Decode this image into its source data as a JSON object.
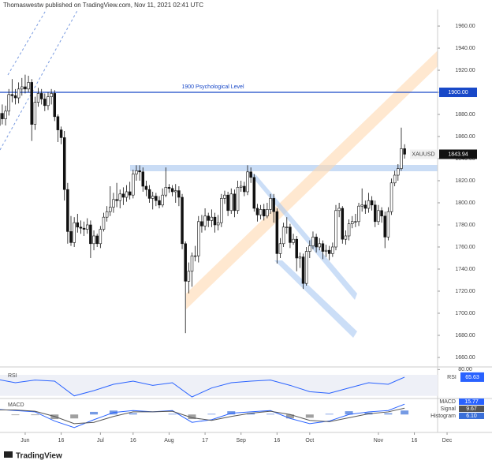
{
  "chart_data": {
    "type": "candlestick",
    "header": "Thomaswestw published on TradingView.com, Nov 11, 2021 02:41 UTC",
    "footer": "TradingView",
    "symbol": "XAUUSD",
    "up_color": "#ffffff",
    "down_color": "#111111",
    "edge_color": "#111111",
    "open": [
      1866,
      1870,
      1881,
      1876,
      1883,
      1898,
      1897,
      1895,
      1903,
      1905,
      1903,
      1909,
      1871,
      1891,
      1899,
      1894,
      1888,
      1896,
      1899,
      1878,
      1866,
      1859,
      1812,
      1774,
      1764,
      1782,
      1778,
      1777,
      1776,
      1780,
      1763,
      1770,
      1763,
      1776,
      1787,
      1792,
      1796,
      1803,
      1802,
      1808,
      1805,
      1810,
      1807,
      1826,
      1829,
      1828,
      1815,
      1812,
      1804,
      1806,
      1802,
      1798,
      1807,
      1814,
      1813,
      1810,
      1811,
      1805,
      1763,
      1729,
      1738,
      1752,
      1752,
      1783,
      1779,
      1788,
      1784,
      1787,
      1780,
      1782,
      1804,
      1807,
      1793,
      1808,
      1793,
      1814,
      1815,
      1810,
      1828,
      1823,
      1795,
      1789,
      1794,
      1788,
      1794,
      1804,
      1792,
      1754,
      1763,
      1778,
      1778,
      1764,
      1767,
      1750,
      1751,
      1727,
      1756,
      1761,
      1769,
      1760,
      1763,
      1756,
      1757,
      1754,
      1760,
      1793,
      1795,
      1767,
      1770,
      1781,
      1783,
      1783,
      1797,
      1798,
      1795,
      1802,
      1798,
      1783,
      1793,
      1788,
      1769,
      1792,
      1818,
      1825,
      1831,
      1849
    ],
    "high": [
      1875,
      1886,
      1889,
      1888,
      1903,
      1912,
      1903,
      1909,
      1913,
      1916,
      1915,
      1912,
      1896,
      1904,
      1903,
      1899,
      1900,
      1903,
      1902,
      1880,
      1869,
      1865,
      1818,
      1788,
      1787,
      1790,
      1784,
      1783,
      1786,
      1784,
      1775,
      1772,
      1779,
      1791,
      1797,
      1815,
      1809,
      1818,
      1812,
      1814,
      1816,
      1819,
      1830,
      1834,
      1834,
      1832,
      1820,
      1816,
      1810,
      1809,
      1806,
      1813,
      1832,
      1817,
      1816,
      1817,
      1815,
      1808,
      1765,
      1746,
      1755,
      1761,
      1788,
      1789,
      1795,
      1791,
      1794,
      1791,
      1789,
      1808,
      1811,
      1810,
      1813,
      1812,
      1820,
      1820,
      1819,
      1834,
      1832,
      1826,
      1799,
      1798,
      1799,
      1800,
      1808,
      1808,
      1795,
      1768,
      1782,
      1787,
      1781,
      1772,
      1770,
      1755,
      1754,
      1760,
      1766,
      1774,
      1772,
      1768,
      1766,
      1762,
      1761,
      1764,
      1798,
      1800,
      1797,
      1775,
      1785,
      1788,
      1790,
      1800,
      1813,
      1802,
      1809,
      1806,
      1802,
      1798,
      1796,
      1792,
      1796,
      1822,
      1829,
      1835,
      1868,
      1853
    ],
    "low": [
      1861,
      1865,
      1871,
      1870,
      1879,
      1891,
      1889,
      1890,
      1897,
      1899,
      1900,
      1856,
      1866,
      1887,
      1889,
      1883,
      1884,
      1889,
      1874,
      1855,
      1853,
      1802,
      1763,
      1761,
      1760,
      1773,
      1772,
      1770,
      1772,
      1750,
      1757,
      1760,
      1759,
      1774,
      1783,
      1788,
      1791,
      1796,
      1795,
      1798,
      1801,
      1803,
      1804,
      1820,
      1820,
      1810,
      1806,
      1800,
      1794,
      1797,
      1795,
      1796,
      1805,
      1809,
      1806,
      1800,
      1797,
      1758,
      1682,
      1718,
      1724,
      1747,
      1746,
      1773,
      1775,
      1778,
      1778,
      1773,
      1775,
      1778,
      1799,
      1788,
      1790,
      1787,
      1790,
      1810,
      1806,
      1807,
      1818,
      1792,
      1783,
      1785,
      1784,
      1786,
      1790,
      1782,
      1745,
      1750,
      1760,
      1772,
      1759,
      1762,
      1738,
      1741,
      1722,
      1725,
      1750,
      1758,
      1755,
      1757,
      1749,
      1751,
      1748,
      1751,
      1757,
      1787,
      1763,
      1762,
      1766,
      1777,
      1778,
      1779,
      1792,
      1790,
      1791,
      1793,
      1778,
      1780,
      1782,
      1759,
      1766,
      1789,
      1815,
      1820,
      1829,
      1840
    ],
    "close": [
      1870,
      1881,
      1876,
      1883,
      1898,
      1897,
      1895,
      1903,
      1905,
      1903,
      1909,
      1871,
      1891,
      1899,
      1894,
      1888,
      1896,
      1899,
      1878,
      1866,
      1859,
      1812,
      1774,
      1764,
      1782,
      1778,
      1777,
      1776,
      1780,
      1763,
      1770,
      1763,
      1776,
      1787,
      1792,
      1796,
      1803,
      1802,
      1808,
      1805,
      1810,
      1807,
      1826,
      1829,
      1828,
      1815,
      1812,
      1804,
      1806,
      1802,
      1798,
      1807,
      1814,
      1813,
      1810,
      1811,
      1805,
      1763,
      1729,
      1738,
      1752,
      1752,
      1783,
      1779,
      1788,
      1784,
      1787,
      1780,
      1782,
      1804,
      1807,
      1793,
      1808,
      1793,
      1814,
      1815,
      1810,
      1828,
      1823,
      1795,
      1789,
      1794,
      1788,
      1794,
      1804,
      1792,
      1754,
      1763,
      1778,
      1778,
      1764,
      1767,
      1750,
      1751,
      1727,
      1756,
      1761,
      1769,
      1760,
      1763,
      1756,
      1757,
      1754,
      1760,
      1793,
      1795,
      1767,
      1770,
      1781,
      1783,
      1783,
      1797,
      1798,
      1795,
      1802,
      1798,
      1783,
      1793,
      1788,
      1769,
      1792,
      1818,
      1825,
      1831,
      1849,
      1844
    ],
    "xlim": [
      1.3,
      135.1
    ],
    "ylim": [
      1651.4,
      1983.6
    ],
    "xticks": [
      {
        "value": 9,
        "label": "Jun"
      },
      {
        "value": 20,
        "label": "16"
      },
      {
        "value": 32,
        "label": "Jul"
      },
      {
        "value": 42,
        "label": "16"
      },
      {
        "value": 53,
        "label": "Aug"
      },
      {
        "value": 64,
        "label": "17"
      },
      {
        "value": 75,
        "label": "Sep"
      },
      {
        "value": 86,
        "label": "16"
      },
      {
        "value": 96,
        "label": "Oct"
      },
      {
        "value": 117,
        "label": "Nov"
      },
      {
        "value": 128,
        "label": "16"
      },
      {
        "value": 138,
        "label": "Dec"
      }
    ],
    "yticks": [
      {
        "value": 1660,
        "label": "1660.00"
      },
      {
        "value": 1680,
        "label": "1680.00"
      },
      {
        "value": 1700,
        "label": "1700.00"
      },
      {
        "value": 1720,
        "label": "1720.00"
      },
      {
        "value": 1740,
        "label": "1740.00"
      },
      {
        "value": 1760,
        "label": "1760.00"
      },
      {
        "value": 1780,
        "label": "1780.00"
      },
      {
        "value": 1800,
        "label": "1800.00"
      },
      {
        "value": 1820,
        "label": "1820.00"
      },
      {
        "value": 1840,
        "label": "1840.00"
      },
      {
        "value": 1860,
        "label": "1860.00"
      },
      {
        "value": 1880,
        "label": "1880.00"
      },
      {
        "value": 1900,
        "label": "1900.00"
      },
      {
        "value": 1920,
        "label": "1920.00"
      },
      {
        "value": 1940,
        "label": "1940.00"
      },
      {
        "value": 1960,
        "label": "1960.00"
      }
    ],
    "level": {
      "value": 1900,
      "label": "1900.00",
      "text": "1900 Psychological Level",
      "color": "#1848c8"
    },
    "last_price": {
      "value": 1843.94,
      "label": "1843.94"
    },
    "rsi": {
      "name": "RSI",
      "color": "#2962ff",
      "last": 65.63,
      "ylim": [
        25,
        85
      ],
      "yticks": [
        {
          "value": 80,
          "label": "80.00"
        }
      ],
      "x": [
        0,
        6,
        12,
        18,
        24,
        30,
        36,
        42,
        48,
        54,
        60,
        66,
        72,
        78,
        84,
        90,
        96,
        102,
        108,
        114,
        120,
        125
      ],
      "values": [
        62,
        55,
        60,
        58,
        30,
        40,
        52,
        58,
        50,
        55,
        28,
        45,
        55,
        58,
        60,
        50,
        38,
        35,
        45,
        55,
        52,
        65.63
      ]
    },
    "macd": {
      "ylim": [
        -25,
        22
      ],
      "x": [
        0,
        6,
        12,
        18,
        24,
        30,
        36,
        42,
        48,
        54,
        60,
        66,
        72,
        78,
        84,
        90,
        96,
        102,
        108,
        114,
        120,
        125
      ],
      "series": [
        {
          "name": "MACD",
          "color": "#2962ff",
          "last": 15.77,
          "values": [
            8,
            6,
            4,
            -10,
            -20,
            -8,
            3,
            6,
            4,
            6,
            -12,
            -8,
            2,
            4,
            6,
            -6,
            -14,
            -10,
            0,
            4,
            6,
            15.77
          ]
        },
        {
          "name": "Signal",
          "color": "#555555",
          "last": 9.67,
          "values": [
            7,
            7,
            5,
            -3,
            -14,
            -12,
            -3,
            4,
            4,
            5,
            -5,
            -9,
            -3,
            2,
            5,
            0,
            -9,
            -11,
            -5,
            1,
            4,
            9.67
          ]
        }
      ],
      "histogram": {
        "name": "Histogram",
        "color": "#3a6fd8",
        "last": {
          "value": 6.1,
          "label": "6.10"
        },
        "values": [
          1,
          -1,
          -1,
          -7,
          -6,
          4,
          6,
          2,
          0,
          1,
          -7,
          1,
          5,
          2,
          1,
          -6,
          -5,
          1,
          5,
          3,
          2,
          6.1
        ]
      }
    }
  }
}
